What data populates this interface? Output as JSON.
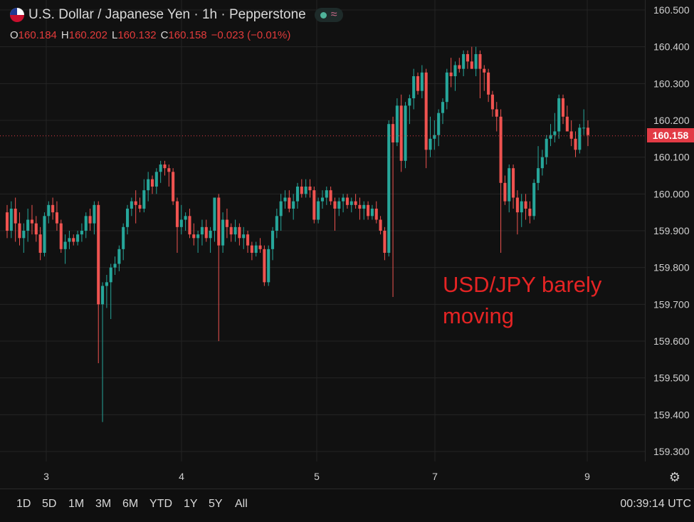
{
  "header": {
    "title": "U.S. Dollar / Japanese Yen · 1h · Pepperstone",
    "flag_icon": "us-flag-icon",
    "status_icon": "market-open-icon",
    "waves_icon": "approx-icon",
    "waves_glyph": "≈"
  },
  "ohlc": {
    "o_label": "O",
    "o": "160.184",
    "h_label": "H",
    "h": "160.202",
    "l_label": "L",
    "l": "160.132",
    "c_label": "C",
    "c": "160.158",
    "change": "−0.023 (−0.01%)"
  },
  "annotation": {
    "line1": "USD/JPY barely",
    "line2": "moving"
  },
  "last_price": "160.158",
  "toolbar": {
    "ranges": [
      "1D",
      "5D",
      "1M",
      "3M",
      "6M",
      "YTD",
      "1Y",
      "5Y",
      "All"
    ],
    "clock": "00:39:14 UTC",
    "settings_icon": "settings-icon",
    "settings_glyph": "⚙"
  },
  "colors": {
    "up": "#26a69a",
    "down": "#ef5350",
    "last_line": "#e23b45",
    "grid": "#242424",
    "axis_text": "#d0d0d0",
    "background": "#111111"
  },
  "chart_data": {
    "type": "candlestick",
    "title": "U.S. Dollar / Japanese Yen · 1h · Pepperstone",
    "ylim": [
      159.28,
      160.52
    ],
    "y_ticks": [
      "160.500",
      "160.400",
      "160.300",
      "160.200",
      "160.100",
      "160.000",
      "159.900",
      "159.800",
      "159.700",
      "159.600",
      "159.500",
      "159.400",
      "159.300"
    ],
    "x_ticks": [
      "3",
      "4",
      "5",
      "7",
      "9"
    ],
    "last_price": 160.158,
    "candles": [
      [
        159.95,
        159.97,
        159.88,
        159.9
      ],
      [
        159.9,
        159.98,
        159.88,
        159.96
      ],
      [
        159.96,
        159.99,
        159.87,
        159.92
      ],
      [
        159.92,
        159.95,
        159.86,
        159.88
      ],
      [
        159.88,
        159.92,
        159.84,
        159.9
      ],
      [
        159.9,
        159.96,
        159.87,
        159.93
      ],
      [
        159.93,
        159.97,
        159.89,
        159.92
      ],
      [
        159.92,
        159.94,
        159.87,
        159.89
      ],
      [
        159.89,
        159.91,
        159.82,
        159.84
      ],
      [
        159.84,
        159.95,
        159.83,
        159.94
      ],
      [
        159.94,
        159.98,
        159.92,
        159.97
      ],
      [
        159.97,
        159.99,
        159.93,
        159.95
      ],
      [
        159.95,
        159.98,
        159.9,
        159.92
      ],
      [
        159.92,
        159.93,
        159.84,
        159.85
      ],
      [
        159.85,
        159.89,
        159.81,
        159.87
      ],
      [
        159.87,
        159.9,
        159.85,
        159.88
      ],
      [
        159.88,
        159.89,
        159.86,
        159.87
      ],
      [
        159.87,
        159.9,
        159.86,
        159.89
      ],
      [
        159.89,
        159.92,
        159.87,
        159.9
      ],
      [
        159.9,
        159.95,
        159.88,
        159.94
      ],
      [
        159.94,
        159.96,
        159.9,
        159.92
      ],
      [
        159.92,
        159.98,
        159.89,
        159.97
      ],
      [
        159.97,
        159.98,
        159.54,
        159.7
      ],
      [
        159.7,
        159.76,
        159.38,
        159.75
      ],
      [
        159.75,
        159.78,
        159.69,
        159.76
      ],
      [
        159.76,
        159.81,
        159.66,
        159.8
      ],
      [
        159.8,
        159.83,
        159.78,
        159.81
      ],
      [
        159.81,
        159.86,
        159.79,
        159.85
      ],
      [
        159.85,
        159.92,
        159.82,
        159.91
      ],
      [
        159.91,
        159.97,
        159.89,
        159.96
      ],
      [
        159.96,
        159.99,
        159.94,
        159.98
      ],
      [
        159.98,
        160.01,
        159.92,
        159.97
      ],
      [
        159.97,
        159.99,
        159.95,
        159.96
      ],
      [
        159.96,
        160.04,
        159.95,
        160.01
      ],
      [
        160.01,
        160.06,
        159.98,
        160.04
      ],
      [
        160.04,
        160.05,
        160.0,
        160.02
      ],
      [
        160.02,
        160.07,
        160.0,
        160.06
      ],
      [
        160.06,
        160.09,
        160.03,
        160.08
      ],
      [
        160.08,
        160.09,
        160.05,
        160.07
      ],
      [
        160.07,
        160.08,
        160.02,
        160.06
      ],
      [
        160.06,
        160.07,
        159.97,
        159.98
      ],
      [
        159.98,
        159.99,
        159.84,
        159.91
      ],
      [
        159.91,
        159.97,
        159.89,
        159.93
      ],
      [
        159.93,
        159.95,
        159.9,
        159.94
      ],
      [
        159.94,
        159.96,
        159.88,
        159.89
      ],
      [
        159.89,
        159.92,
        159.86,
        159.88
      ],
      [
        159.88,
        159.9,
        159.84,
        159.89
      ],
      [
        159.89,
        159.93,
        159.86,
        159.91
      ],
      [
        159.91,
        159.93,
        159.87,
        159.88
      ],
      [
        159.88,
        159.91,
        159.84,
        159.9
      ],
      [
        159.9,
        159.99,
        159.87,
        159.99
      ],
      [
        159.99,
        160.0,
        159.6,
        159.86
      ],
      [
        159.86,
        159.95,
        159.84,
        159.93
      ],
      [
        159.93,
        159.96,
        159.88,
        159.91
      ],
      [
        159.91,
        159.92,
        159.87,
        159.89
      ],
      [
        159.89,
        159.93,
        159.87,
        159.91
      ],
      [
        159.91,
        159.92,
        159.86,
        159.88
      ],
      [
        159.88,
        159.91,
        159.85,
        159.89
      ],
      [
        159.89,
        159.9,
        159.84,
        159.86
      ],
      [
        159.86,
        159.87,
        159.82,
        159.84
      ],
      [
        159.84,
        159.87,
        159.83,
        159.86
      ],
      [
        159.86,
        159.88,
        159.84,
        159.85
      ],
      [
        159.85,
        159.86,
        159.75,
        159.76
      ],
      [
        159.76,
        159.86,
        159.75,
        159.85
      ],
      [
        159.85,
        159.91,
        159.82,
        159.9
      ],
      [
        159.9,
        159.96,
        159.88,
        159.94
      ],
      [
        159.94,
        160.0,
        159.9,
        159.98
      ],
      [
        159.98,
        160.01,
        159.96,
        159.99
      ],
      [
        159.99,
        160.01,
        159.95,
        159.96
      ],
      [
        159.96,
        160.0,
        159.93,
        159.98
      ],
      [
        159.98,
        160.03,
        159.96,
        160.02
      ],
      [
        160.02,
        160.04,
        159.99,
        160.0
      ],
      [
        160.0,
        160.04,
        159.99,
        160.02
      ],
      [
        160.02,
        160.04,
        159.99,
        160.01
      ],
      [
        160.01,
        160.02,
        159.92,
        159.93
      ],
      [
        159.93,
        159.99,
        159.92,
        159.98
      ],
      [
        159.98,
        160.01,
        159.96,
        159.99
      ],
      [
        159.99,
        160.02,
        159.97,
        160.01
      ],
      [
        160.01,
        160.02,
        159.97,
        159.98
      ],
      [
        159.98,
        159.99,
        159.9,
        159.96
      ],
      [
        159.96,
        159.99,
        159.94,
        159.98
      ],
      [
        159.98,
        160.0,
        159.95,
        159.99
      ],
      [
        159.99,
        160.0,
        159.96,
        159.97
      ],
      [
        159.97,
        159.99,
        159.95,
        159.98
      ],
      [
        159.98,
        160.0,
        159.96,
        159.97
      ],
      [
        159.97,
        159.99,
        159.93,
        159.96
      ],
      [
        159.96,
        159.98,
        159.93,
        159.97
      ],
      [
        159.97,
        159.98,
        159.93,
        159.94
      ],
      [
        159.94,
        159.97,
        159.93,
        159.96
      ],
      [
        159.96,
        159.98,
        159.92,
        159.93
      ],
      [
        159.93,
        159.94,
        159.89,
        159.9
      ],
      [
        159.9,
        159.91,
        159.82,
        159.84
      ],
      [
        159.84,
        160.2,
        159.83,
        160.19
      ],
      [
        160.19,
        160.21,
        159.72,
        160.14
      ],
      [
        160.14,
        160.26,
        160.13,
        160.24
      ],
      [
        160.24,
        160.27,
        160.06,
        160.09
      ],
      [
        160.09,
        160.25,
        160.07,
        160.24
      ],
      [
        160.24,
        160.27,
        160.19,
        160.26
      ],
      [
        160.26,
        160.34,
        160.23,
        160.32
      ],
      [
        160.32,
        160.33,
        160.27,
        160.28
      ],
      [
        160.28,
        160.35,
        160.26,
        160.33
      ],
      [
        160.33,
        160.34,
        160.07,
        160.12
      ],
      [
        160.12,
        160.21,
        160.1,
        160.15
      ],
      [
        160.15,
        160.2,
        160.12,
        160.16
      ],
      [
        160.16,
        160.23,
        160.13,
        160.22
      ],
      [
        160.22,
        160.26,
        160.19,
        160.25
      ],
      [
        160.25,
        160.34,
        160.23,
        160.33
      ],
      [
        160.33,
        160.37,
        160.29,
        160.32
      ],
      [
        160.32,
        160.36,
        160.28,
        160.35
      ],
      [
        160.35,
        160.37,
        160.33,
        160.34
      ],
      [
        160.34,
        160.39,
        160.32,
        160.38
      ],
      [
        160.38,
        160.39,
        160.34,
        160.36
      ],
      [
        160.36,
        160.4,
        160.34,
        160.34
      ],
      [
        160.34,
        160.4,
        160.32,
        160.38
      ],
      [
        160.38,
        160.39,
        160.26,
        160.34
      ],
      [
        160.34,
        160.35,
        160.28,
        160.33
      ],
      [
        160.33,
        160.34,
        160.25,
        160.27
      ],
      [
        160.27,
        160.28,
        160.21,
        160.23
      ],
      [
        160.23,
        160.25,
        160.17,
        160.21
      ],
      [
        160.21,
        160.23,
        159.84,
        160.03
      ],
      [
        160.03,
        160.05,
        159.97,
        159.98
      ],
      [
        159.98,
        160.08,
        159.95,
        160.07
      ],
      [
        160.07,
        160.08,
        159.96,
        159.99
      ],
      [
        159.99,
        160.01,
        159.89,
        159.95
      ],
      [
        159.95,
        160.0,
        159.91,
        159.98
      ],
      [
        159.98,
        160.0,
        159.93,
        159.96
      ],
      [
        159.96,
        159.98,
        159.92,
        159.94
      ],
      [
        159.94,
        160.04,
        159.93,
        160.03
      ],
      [
        160.03,
        160.13,
        160.01,
        160.07
      ],
      [
        160.07,
        160.12,
        160.05,
        160.1
      ],
      [
        160.1,
        160.16,
        160.08,
        160.15
      ],
      [
        160.15,
        160.19,
        160.13,
        160.16
      ],
      [
        160.16,
        160.22,
        160.14,
        160.17
      ],
      [
        160.17,
        160.27,
        160.15,
        160.26
      ],
      [
        160.26,
        160.27,
        160.19,
        160.21
      ],
      [
        160.21,
        160.24,
        160.17,
        160.17
      ],
      [
        160.17,
        160.2,
        160.13,
        160.15
      ],
      [
        160.15,
        160.17,
        160.1,
        160.12
      ],
      [
        160.12,
        160.19,
        160.11,
        160.18
      ],
      [
        160.18,
        160.23,
        160.16,
        160.18
      ],
      [
        160.18,
        160.2,
        160.13,
        160.16
      ]
    ]
  }
}
